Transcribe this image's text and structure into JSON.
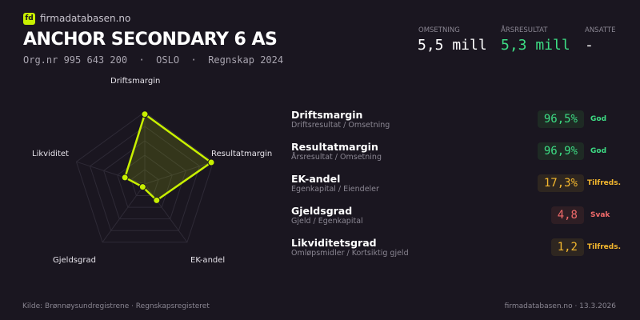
{
  "header": {
    "logo_text": "fd",
    "brand": "firmadatabasen.no",
    "company": "ANCHOR SECONDARY 6 AS",
    "subline": "Org.nr 995 643 200  ·  OSLO  ·  Regnskap 2024"
  },
  "kpis": [
    {
      "label": "OMSETNING",
      "value": "5,5 mill",
      "color": "#ffffff"
    },
    {
      "label": "ÅRSRESULTAT",
      "value": "5,3 mill",
      "color": "#3ddc84"
    },
    {
      "label": "ANSATTE",
      "value": "-",
      "color": "#ffffff"
    }
  ],
  "chart_data": {
    "type": "radar",
    "axes": [
      "Driftsmargin",
      "Resultatmargin",
      "EK-andel",
      "Gjeldsgrad",
      "Likviditet"
    ],
    "scores": [
      0.97,
      0.97,
      0.28,
      0.05,
      0.29
    ],
    "range": [
      0,
      1
    ],
    "grid_levels": 5,
    "color": "#c8f000"
  },
  "metrics": [
    {
      "title": "Driftsmargin",
      "formula": "Driftsresultat / Omsetning",
      "value": "96,5%",
      "status": "God",
      "color": "#3ddc84",
      "bg": "#1e2a24"
    },
    {
      "title": "Resultatmargin",
      "formula": "Årsresultat / Omsetning",
      "value": "96,9%",
      "status": "God",
      "color": "#3ddc84",
      "bg": "#1e2a24"
    },
    {
      "title": "EK-andel",
      "formula": "Egenkapital / Eiendeler",
      "value": "17,3%",
      "status": "Tilfreds.",
      "color": "#f5b82e",
      "bg": "#2e2620"
    },
    {
      "title": "Gjeldsgrad",
      "formula": "Gjeld / Egenkapital",
      "value": "4,8",
      "status": "Svak",
      "color": "#f06a6a",
      "bg": "#2e1e24"
    },
    {
      "title": "Likviditetsgrad",
      "formula": "Omløpsmidler / Kortsiktig gjeld",
      "value": "1,2",
      "status": "Tilfreds.",
      "color": "#f5b82e",
      "bg": "#2e2620"
    }
  ],
  "footer": {
    "source": "Kilde: Brønnøysundregistrene · Regnskapsregisteret",
    "site_date": "firmadatabasen.no · 13.3.2026"
  }
}
